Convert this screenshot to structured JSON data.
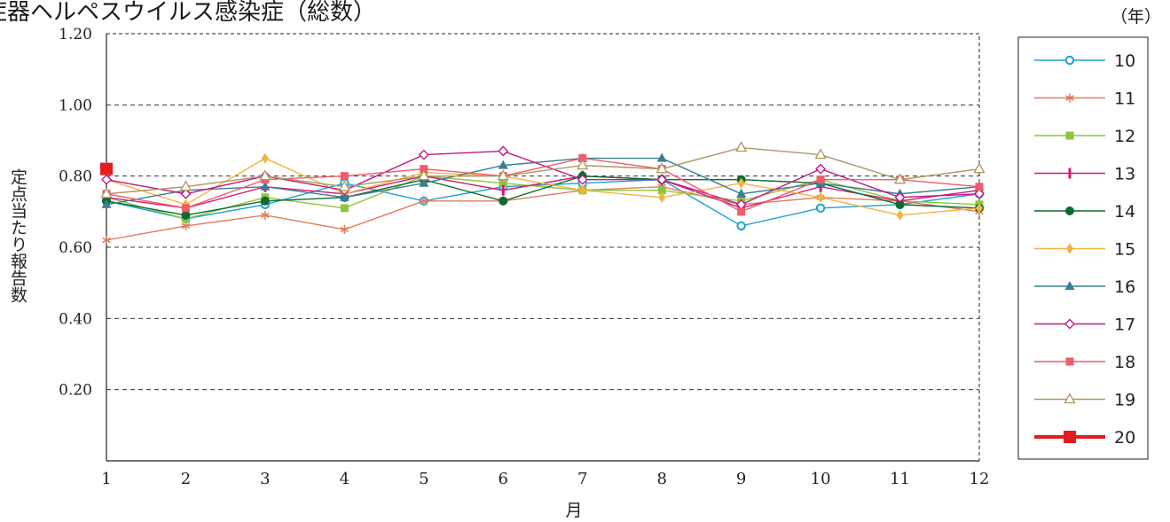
{
  "chart_data": {
    "type": "line",
    "title": "症器ヘルペスウイルス感染症（総数）",
    "xlabel": "月",
    "ylabel": "定点当たり報告数",
    "legend_unit": "（年）",
    "legend_position": "right",
    "grid": true,
    "ylim": [
      0,
      1.2
    ],
    "yticks": [
      "0.20",
      "0.40",
      "0.60",
      "0.80",
      "1.00",
      "1.20"
    ],
    "categories": [
      "1",
      "2",
      "3",
      "4",
      "5",
      "6",
      "7",
      "8",
      "9",
      "10",
      "11",
      "12"
    ],
    "series": [
      {
        "name": "10",
        "color": "#1ba3d4",
        "marker": "circle-open",
        "values": [
          0.73,
          0.68,
          0.72,
          0.78,
          0.73,
          0.77,
          0.78,
          0.79,
          0.66,
          0.71,
          0.72,
          0.75
        ]
      },
      {
        "name": "11",
        "color": "#e07b5a",
        "marker": "star",
        "values": [
          0.62,
          0.66,
          0.69,
          0.65,
          0.73,
          0.73,
          0.76,
          0.77,
          0.72,
          0.74,
          0.73,
          0.7
        ]
      },
      {
        "name": "12",
        "color": "#8cc63f",
        "marker": "square",
        "values": [
          0.74,
          0.68,
          0.74,
          0.71,
          0.8,
          0.78,
          0.76,
          0.76,
          0.73,
          0.79,
          0.73,
          0.72
        ]
      },
      {
        "name": "13",
        "color": "#d4177a",
        "marker": "bar",
        "values": [
          0.74,
          0.71,
          0.77,
          0.75,
          0.8,
          0.76,
          0.8,
          0.79,
          0.71,
          0.77,
          0.73,
          0.76
        ]
      },
      {
        "name": "14",
        "color": "#0d6b2e",
        "marker": "circle",
        "values": [
          0.73,
          0.69,
          0.73,
          0.74,
          0.79,
          0.73,
          0.8,
          0.79,
          0.79,
          0.78,
          0.72,
          0.71
        ]
      },
      {
        "name": "15",
        "color": "#f5b240",
        "marker": "diamond",
        "values": [
          0.79,
          0.72,
          0.85,
          0.75,
          0.81,
          0.8,
          0.76,
          0.74,
          0.78,
          0.74,
          0.69,
          0.71
        ]
      },
      {
        "name": "16",
        "color": "#3a7d94",
        "marker": "triangle",
        "values": [
          0.72,
          0.76,
          0.77,
          0.74,
          0.78,
          0.83,
          0.85,
          0.85,
          0.75,
          0.78,
          0.75,
          0.77
        ]
      },
      {
        "name": "17",
        "color": "#c21884",
        "marker": "diamond-open",
        "values": [
          0.79,
          0.75,
          0.8,
          0.76,
          0.86,
          0.87,
          0.79,
          0.79,
          0.72,
          0.82,
          0.74,
          0.75
        ]
      },
      {
        "name": "18",
        "color": "#ee5d6c",
        "marker": "square",
        "values": [
          0.75,
          0.71,
          0.79,
          0.8,
          0.82,
          0.8,
          0.85,
          0.82,
          0.7,
          0.79,
          0.79,
          0.77
        ]
      },
      {
        "name": "19",
        "color": "#ad9660",
        "marker": "triangle-open",
        "values": [
          0.75,
          0.77,
          0.8,
          0.77,
          0.8,
          0.8,
          0.83,
          0.82,
          0.88,
          0.86,
          0.79,
          0.82
        ]
      },
      {
        "name": "20",
        "color": "#e21d1d",
        "marker": "square-big",
        "values": [
          0.82,
          null,
          null,
          null,
          null,
          null,
          null,
          null,
          null,
          null,
          null,
          null
        ]
      }
    ]
  }
}
